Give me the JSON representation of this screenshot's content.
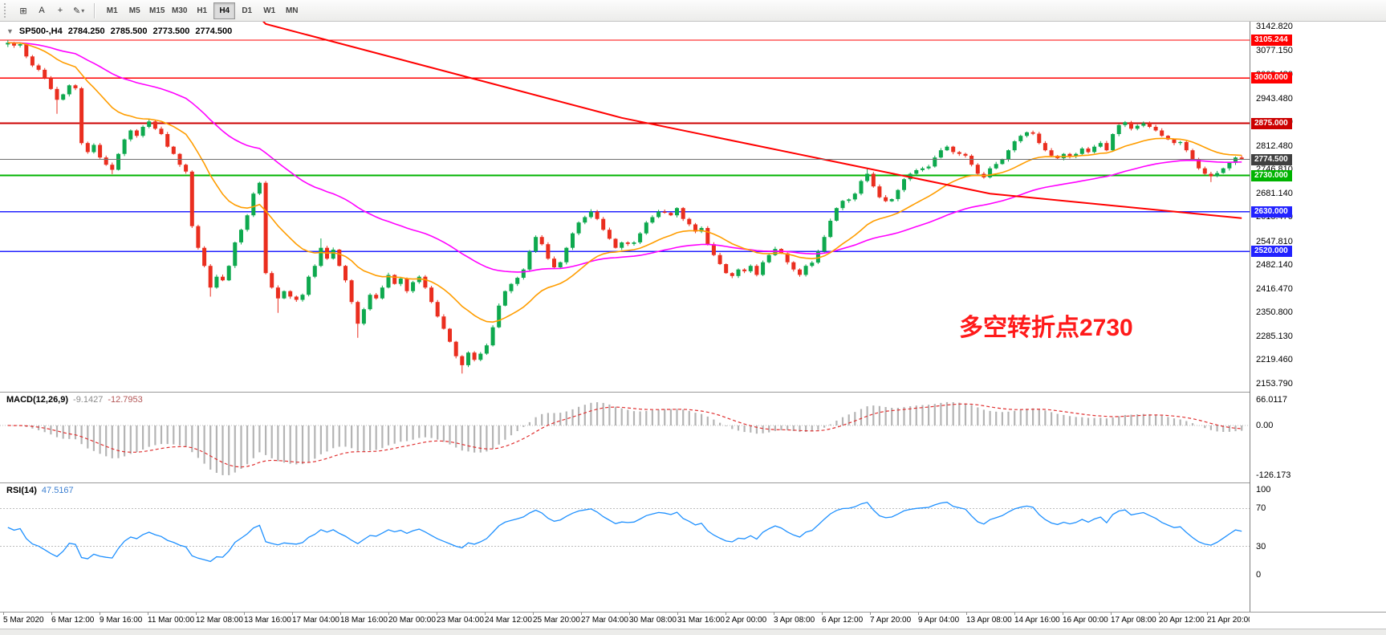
{
  "toolbar": {
    "icons": [
      {
        "name": "tile-windows-icon",
        "glyph": "⊞"
      },
      {
        "name": "text-annotation-icon",
        "glyph": "A"
      },
      {
        "name": "crosshair-icon",
        "glyph": "+"
      },
      {
        "name": "draw-tools-icon",
        "glyph": "✎",
        "caret": "▾"
      }
    ],
    "timeframes": [
      "M1",
      "M5",
      "M15",
      "M30",
      "H1",
      "H4",
      "D1",
      "W1",
      "MN"
    ],
    "active_timeframe": "H4"
  },
  "main_chart": {
    "title_dropdown_glyph": "▼",
    "symbol_title": "SP500-,H4",
    "ohlc": {
      "open": "2784.250",
      "high": "2785.500",
      "low": "2773.500",
      "close": "2774.500"
    },
    "annotation": "多空转折点2730"
  },
  "macd_panel": {
    "title": "MACD(12,26,9)",
    "value_main": "-9.1427",
    "value_signal": "-12.7953",
    "axis": [
      "66.0117",
      "0.00",
      "-126.173"
    ]
  },
  "rsi_panel": {
    "title": "RSI(14)",
    "value": "47.5167",
    "axis": [
      "100",
      "70",
      "30",
      "0"
    ],
    "levels": [
      70,
      30
    ]
  },
  "chart_data": {
    "type": "candlestick",
    "symbol": "SP500-",
    "timeframe": "H4",
    "current_price": 2774.5,
    "first_open": 3093,
    "closes": [
      3098,
      3090,
      3094,
      3060,
      3035,
      3023,
      3000,
      2970,
      2940,
      2955,
      2980,
      2972,
      2820,
      2795,
      2815,
      2780,
      2760,
      2746,
      2790,
      2830,
      2855,
      2840,
      2865,
      2880,
      2860,
      2845,
      2810,
      2790,
      2760,
      2741,
      2590,
      2530,
      2480,
      2420,
      2450,
      2440,
      2480,
      2545,
      2580,
      2620,
      2680,
      2710,
      2460,
      2420,
      2390,
      2410,
      2395,
      2386,
      2400,
      2450,
      2480,
      2530,
      2500,
      2525,
      2480,
      2440,
      2380,
      2320,
      2360,
      2400,
      2390,
      2420,
      2455,
      2430,
      2445,
      2410,
      2435,
      2450,
      2420,
      2380,
      2340,
      2306,
      2270,
      2230,
      2205,
      2240,
      2220,
      2237,
      2260,
      2310,
      2370,
      2410,
      2430,
      2447,
      2470,
      2520,
      2560,
      2540,
      2500,
      2476,
      2490,
      2530,
      2570,
      2600,
      2615,
      2630,
      2610,
      2580,
      2555,
      2530,
      2545,
      2541,
      2545,
      2570,
      2600,
      2615,
      2630,
      2627,
      2620,
      2640,
      2610,
      2595,
      2575,
      2585,
      2540,
      2510,
      2485,
      2460,
      2452,
      2470,
      2465,
      2480,
      2455,
      2490,
      2510,
      2527,
      2515,
      2490,
      2470,
      2455,
      2480,
      2489,
      2520,
      2560,
      2605,
      2640,
      2660,
      2664,
      2680,
      2715,
      2735,
      2700,
      2670,
      2659,
      2665,
      2690,
      2720,
      2735,
      2745,
      2750,
      2755,
      2780,
      2800,
      2810,
      2795,
      2790,
      2785,
      2760,
      2735,
      2725,
      2750,
      2762,
      2775,
      2800,
      2825,
      2840,
      2850,
      2846,
      2820,
      2800,
      2785,
      2778,
      2790,
      2783,
      2790,
      2805,
      2795,
      2810,
      2820,
      2800,
      2845,
      2870,
      2878,
      2860,
      2868,
      2875,
      2865,
      2855,
      2840,
      2830,
      2820,
      2823,
      2800,
      2775,
      2750,
      2735,
      2728,
      2737,
      2750,
      2765,
      2780,
      2774.5
    ],
    "wick_overrides": {
      "0": [
        3105,
        3086
      ],
      "8": [
        null,
        2901
      ],
      "17": [
        null,
        2734
      ],
      "23": [
        2886,
        null
      ],
      "33": [
        null,
        2395
      ],
      "41": [
        2713,
        null
      ],
      "44": [
        null,
        2350
      ],
      "51": [
        2556,
        null
      ],
      "57": [
        null,
        2281
      ],
      "74": [
        null,
        2182
      ],
      "95": [
        2637,
        null
      ],
      "140": [
        2748,
        null
      ],
      "153": [
        2814,
        null
      ],
      "166": [
        2852,
        null
      ],
      "185": [
        2880,
        null
      ],
      "196": [
        null,
        2712
      ],
      "201": [
        2785.5,
        2773.5
      ]
    },
    "horizontal_lines": [
      {
        "price": 3105.244,
        "color": "#ff0000",
        "width": 1.3
      },
      {
        "price": 3000.0,
        "color": "#ff0000",
        "width": 1.3
      },
      {
        "price": 2875.0,
        "color": "#cc0000",
        "width": 2
      },
      {
        "price": 2730.0,
        "color": "#00b300",
        "width": 2
      },
      {
        "price": 2630.0,
        "color": "#2222ff",
        "width": 1.5
      },
      {
        "price": 2520.0,
        "color": "#2222ff",
        "width": 1.5
      }
    ],
    "badges": [
      {
        "text": "3105.244",
        "price": 3105.244,
        "bg": "#ff0000"
      },
      {
        "text": "3000.000",
        "price": 3000.0,
        "bg": "#ff0000"
      },
      {
        "text": "2875.000",
        "price": 2875.0,
        "bg": "#cc0000"
      },
      {
        "text": "2774.500",
        "price": 2774.5,
        "bg": "#404040"
      },
      {
        "text": "2730.000",
        "price": 2730.0,
        "bg": "#00b300"
      },
      {
        "text": "2630.000",
        "price": 2630.0,
        "bg": "#2222ff"
      },
      {
        "text": "2520.000",
        "price": 2520.0,
        "bg": "#2222ff"
      }
    ],
    "price_axis": {
      "top_price": 3142.82,
      "bottom_price": 2153.79,
      "labels": [
        "3142.820",
        "3077.150",
        "3009.480",
        "2943.480",
        "2877.810",
        "2812.480",
        "2746.810",
        "2681.140",
        "2615.470",
        "2547.810",
        "2482.140",
        "2416.470",
        "2350.800",
        "2285.130",
        "2219.460",
        "2153.790"
      ]
    },
    "time_labels": [
      "5 Mar 2020",
      "6 Mar 12:00",
      "9 Mar 16:00",
      "11 Mar 00:00",
      "12 Mar 08:00",
      "13 Mar 16:00",
      "17 Mar 04:00",
      "18 Mar 16:00",
      "20 Mar 00:00",
      "23 Mar 04:00",
      "24 Mar 12:00",
      "25 Mar 20:00",
      "27 Mar 04:00",
      "30 Mar 08:00",
      "31 Mar 16:00",
      "2 Apr 00:00",
      "3 Apr 08:00",
      "6 Apr 12:00",
      "7 Apr 20:00",
      "9 Apr 04:00",
      "13 Apr 08:00",
      "14 Apr 16:00",
      "16 Apr 00:00",
      "17 Apr 08:00",
      "20 Apr 12:00",
      "21 Apr 20:00"
    ],
    "moving_averages": {
      "fast_period": 20,
      "slow_period": 55
    },
    "trend_line_points": [
      [
        40,
        3185
      ],
      [
        42,
        3150
      ],
      [
        100,
        2890
      ],
      [
        160,
        2680
      ],
      [
        201,
        2612
      ]
    ],
    "indicators": {
      "macd": {
        "fast": 12,
        "slow": 26,
        "signal": 9
      },
      "rsi": {
        "period": 14
      }
    },
    "colors": {
      "up": "#0ea94e",
      "down": "#ea2e1f",
      "ma_fast": "#ff9d00",
      "ma_slow": "#ff00ff",
      "ma_trend": "#ff0000",
      "macd_hist": "#b4b4b4",
      "macd_signal": "#e03030",
      "rsi_line": "#1e90ff",
      "level_dotted": "#bdbdbd",
      "current_line": "#707070"
    }
  }
}
